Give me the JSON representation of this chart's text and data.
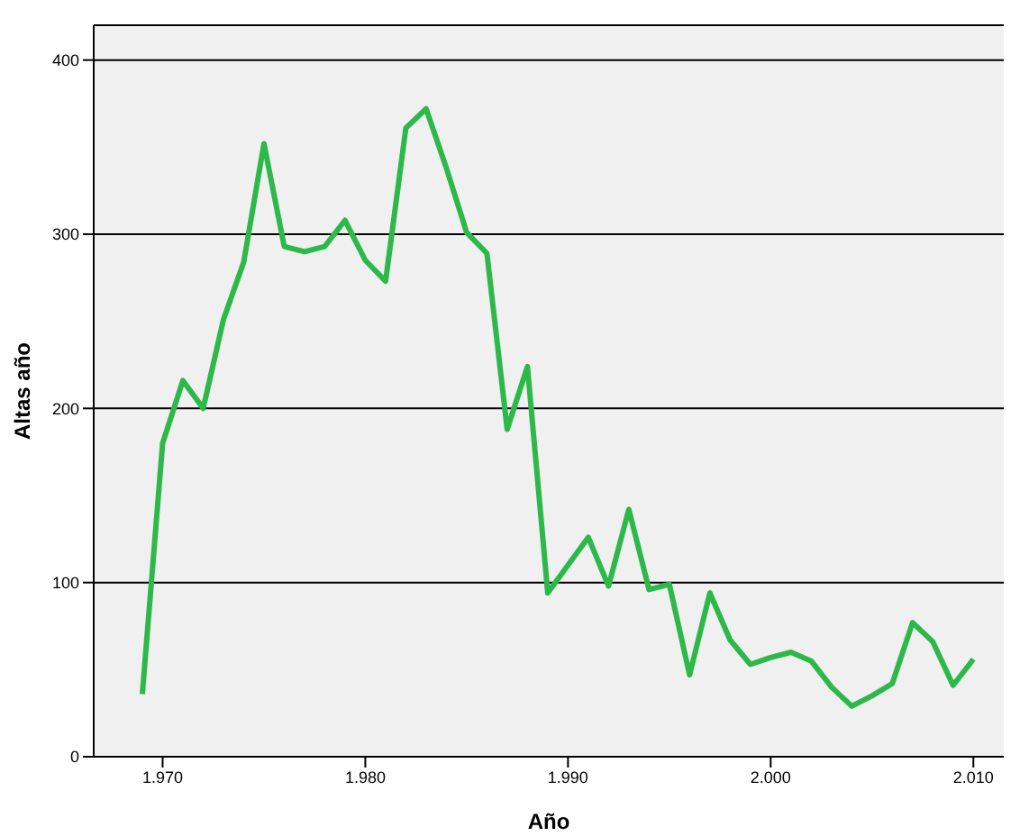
{
  "chart_data": {
    "type": "line",
    "xlabel": "Año",
    "ylabel": "Altas año",
    "x": [
      1969,
      1970,
      1971,
      1972,
      1973,
      1974,
      1975,
      1976,
      1977,
      1978,
      1979,
      1980,
      1981,
      1982,
      1983,
      1984,
      1985,
      1986,
      1987,
      1988,
      1989,
      1990,
      1991,
      1992,
      1993,
      1994,
      1995,
      1996,
      1997,
      1998,
      1999,
      2000,
      2001,
      2002,
      2003,
      2004,
      2005,
      2006,
      2007,
      2008,
      2009,
      2010
    ],
    "series": [
      {
        "color": "#2db84a",
        "values": [
          36,
          180,
          216,
          200,
          251,
          284,
          352,
          293,
          290,
          293,
          308,
          285,
          273,
          361,
          372,
          338,
          301,
          289,
          188,
          224,
          94,
          110,
          126,
          98,
          142,
          96,
          99,
          47,
          94,
          67,
          53,
          57,
          60,
          55,
          40,
          29,
          35,
          42,
          77,
          66,
          41,
          56
        ]
      }
    ],
    "xlim": [
      1966.6,
      2011.5
    ],
    "ylim": [
      0,
      420
    ],
    "xticks": [
      {
        "value": 1970,
        "label": "1.970"
      },
      {
        "value": 1980,
        "label": "1.980"
      },
      {
        "value": 1990,
        "label": "1.990"
      },
      {
        "value": 2000,
        "label": "2.000"
      },
      {
        "value": 2010,
        "label": "2.010"
      }
    ],
    "yticks": [
      0,
      100,
      200,
      300,
      400
    ],
    "grid": "y",
    "marker": "none",
    "line_style": "solid",
    "legend": false
  }
}
